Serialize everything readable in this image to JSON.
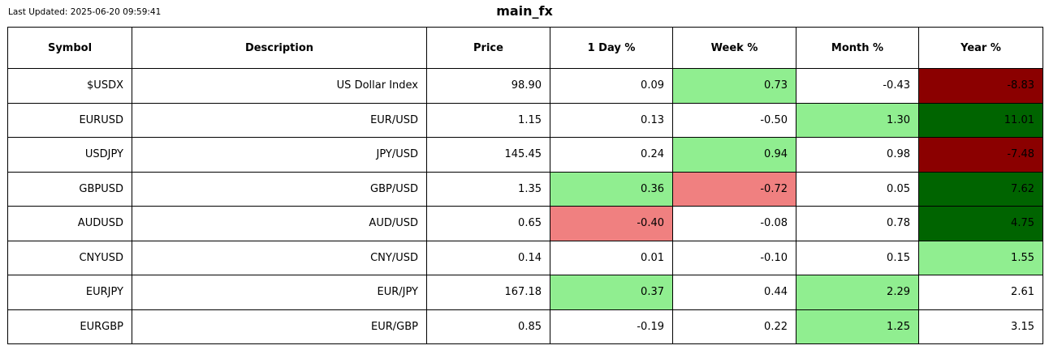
{
  "header": {
    "last_updated": "Last Updated: 2025-06-20 09:59:41",
    "title": "main_fx"
  },
  "colors": {
    "pos_light": "#90ee90",
    "neg_light": "#f08080",
    "pos_dark": "#006400",
    "neg_dark": "#8b0000",
    "neutral": "#ffffff",
    "border": "#000000",
    "background": "#ffffff"
  },
  "table": {
    "columns": [
      "Symbol",
      "Description",
      "Price",
      "1 Day %",
      "Week %",
      "Month %",
      "Year %"
    ],
    "rows": [
      {
        "symbol": "$USDX",
        "description": "US Dollar Index",
        "price": "98.90",
        "day": "0.09",
        "week": "0.73",
        "month": "-0.43",
        "year": "-8.83",
        "day_bg": "none",
        "week_bg": "pos_light",
        "month_bg": "none",
        "year_bg": "neg_dark"
      },
      {
        "symbol": "EURUSD",
        "description": "EUR/USD",
        "price": "1.15",
        "day": "0.13",
        "week": "-0.50",
        "month": "1.30",
        "year": "11.01",
        "day_bg": "none",
        "week_bg": "none",
        "month_bg": "pos_light",
        "year_bg": "pos_dark"
      },
      {
        "symbol": "USDJPY",
        "description": "JPY/USD",
        "price": "145.45",
        "day": "0.24",
        "week": "0.94",
        "month": "0.98",
        "year": "-7.48",
        "day_bg": "none",
        "week_bg": "pos_light",
        "month_bg": "none",
        "year_bg": "neg_dark"
      },
      {
        "symbol": "GBPUSD",
        "description": "GBP/USD",
        "price": "1.35",
        "day": "0.36",
        "week": "-0.72",
        "month": "0.05",
        "year": "7.62",
        "day_bg": "pos_light",
        "week_bg": "neg_light",
        "month_bg": "none",
        "year_bg": "pos_dark"
      },
      {
        "symbol": "AUDUSD",
        "description": "AUD/USD",
        "price": "0.65",
        "day": "-0.40",
        "week": "-0.08",
        "month": "0.78",
        "year": "4.75",
        "day_bg": "neg_light",
        "week_bg": "none",
        "month_bg": "none",
        "year_bg": "pos_dark"
      },
      {
        "symbol": "CNYUSD",
        "description": "CNY/USD",
        "price": "0.14",
        "day": "0.01",
        "week": "-0.10",
        "month": "0.15",
        "year": "1.55",
        "day_bg": "none",
        "week_bg": "none",
        "month_bg": "none",
        "year_bg": "pos_light"
      },
      {
        "symbol": "EURJPY",
        "description": "EUR/JPY",
        "price": "167.18",
        "day": "0.37",
        "week": "0.44",
        "month": "2.29",
        "year": "2.61",
        "day_bg": "pos_light",
        "week_bg": "none",
        "month_bg": "pos_light",
        "year_bg": "none"
      },
      {
        "symbol": "EURGBP",
        "description": "EUR/GBP",
        "price": "0.85",
        "day": "-0.19",
        "week": "0.22",
        "month": "1.25",
        "year": "3.15",
        "day_bg": "none",
        "week_bg": "none",
        "month_bg": "pos_light",
        "year_bg": "none"
      }
    ]
  },
  "chart_data": {
    "type": "table",
    "title": "main_fx",
    "last_updated": "2025-06-20 09:59:41",
    "columns": [
      "Symbol",
      "Description",
      "Price",
      "1 Day %",
      "Week %",
      "Month %",
      "Year %"
    ],
    "rows": [
      [
        "$USDX",
        "US Dollar Index",
        98.9,
        0.09,
        0.73,
        -0.43,
        -8.83
      ],
      [
        "EURUSD",
        "EUR/USD",
        1.15,
        0.13,
        -0.5,
        1.3,
        11.01
      ],
      [
        "USDJPY",
        "JPY/USD",
        145.45,
        0.24,
        0.94,
        0.98,
        -7.48
      ],
      [
        "GBPUSD",
        "GBP/USD",
        1.35,
        0.36,
        -0.72,
        0.05,
        7.62
      ],
      [
        "AUDUSD",
        "AUD/USD",
        0.65,
        -0.4,
        -0.08,
        0.78,
        4.75
      ],
      [
        "CNYUSD",
        "CNY/USD",
        0.14,
        0.01,
        -0.1,
        0.15,
        1.55
      ],
      [
        "EURJPY",
        "EUR/JPY",
        167.18,
        0.37,
        0.44,
        2.29,
        2.61
      ],
      [
        "EURGBP",
        "EUR/GBP",
        0.85,
        -0.19,
        0.22,
        1.25,
        3.15
      ]
    ],
    "highlight_colors": {
      "moderate_gain": "#90ee90",
      "moderate_loss": "#f08080",
      "strong_gain": "#006400",
      "strong_loss": "#8b0000"
    }
  }
}
